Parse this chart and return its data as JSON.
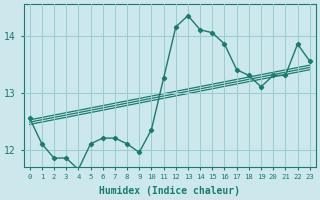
{
  "xlabel": "Humidex (Indice chaleur)",
  "bg_color": "#cce8ec",
  "grid_color": "#99ccd4",
  "line_color": "#1a7a6e",
  "xlim": [
    -0.5,
    23.5
  ],
  "ylim": [
    11.7,
    14.55
  ],
  "yticks": [
    12,
    13,
    14
  ],
  "xticks": [
    0,
    1,
    2,
    3,
    4,
    5,
    6,
    7,
    8,
    9,
    10,
    11,
    12,
    13,
    14,
    15,
    16,
    17,
    18,
    19,
    20,
    21,
    22,
    23
  ],
  "main_y": [
    12.55,
    12.1,
    11.85,
    11.85,
    11.65,
    12.1,
    12.2,
    12.2,
    12.1,
    11.95,
    12.35,
    13.25,
    14.15,
    14.35,
    14.1,
    14.05,
    13.85,
    13.4,
    13.3,
    13.1,
    13.3,
    13.3,
    13.85,
    13.55
  ],
  "reg_lines": [
    [
      12.52,
      13.48
    ],
    [
      12.48,
      13.44
    ],
    [
      12.44,
      13.4
    ]
  ]
}
